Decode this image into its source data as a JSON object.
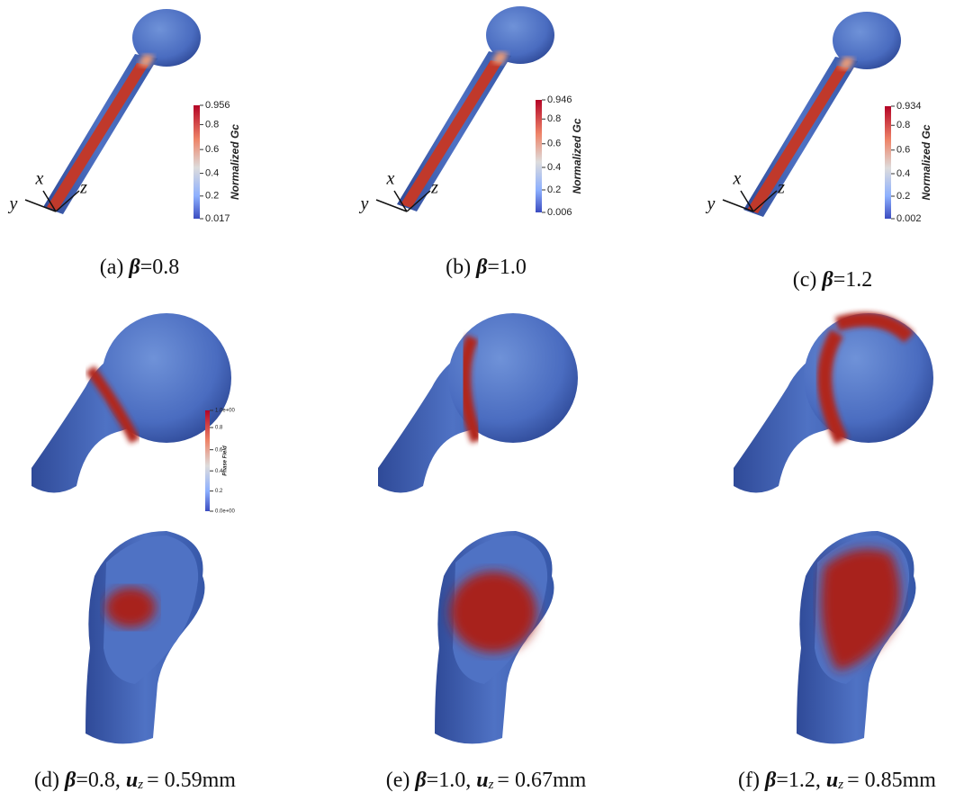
{
  "panels": [
    {
      "caption": {
        "label": "(a)",
        "beta": "β",
        "beta_value": "=0.8"
      },
      "colorbar": {
        "title": "Normalized Gc",
        "ticks": [
          "0.956",
          "0.8",
          "0.6",
          "0.4",
          "0.2",
          "0.017"
        ]
      },
      "axes": [
        "x",
        "y",
        "z"
      ]
    },
    {
      "caption": {
        "label": "(b)",
        "beta": "β",
        "beta_value": "=1.0"
      },
      "colorbar": {
        "title": "Normalized Gc",
        "ticks": [
          "0.946",
          "0.8",
          "0.6",
          "0.4",
          "0.2",
          "0.006"
        ]
      },
      "axes": [
        "x",
        "y",
        "z"
      ]
    },
    {
      "caption": {
        "label": "(c)",
        "beta": "β",
        "beta_value": "=1.2"
      },
      "colorbar": {
        "title": "Normalized Gc",
        "ticks": [
          "0.934",
          "0.8",
          "0.6",
          "0.4",
          "0.2",
          "0.002"
        ]
      },
      "axes": [
        "x",
        "y",
        "z"
      ]
    },
    {
      "caption": {
        "label": "(d)",
        "beta": "β",
        "beta_value": "=0.8,",
        "u": "u",
        "u_sub": "z",
        "u_value": "= 0.59mm"
      },
      "colorbar": {
        "title": "Phase Field",
        "ticks": [
          "1.0e+00",
          "0.8",
          "0.6",
          "0.4",
          "0.2",
          "0.0e+00"
        ]
      }
    },
    {
      "caption": {
        "label": "(e)",
        "beta": "β",
        "beta_value": "=1.0,",
        "u": "u",
        "u_sub": "z",
        "u_value": "= 0.67mm"
      }
    },
    {
      "caption": {
        "label": "(f)",
        "beta": "β",
        "beta_value": "=1.2,",
        "u": "u",
        "u_sub": "z",
        "u_value": "= 0.85mm"
      }
    }
  ]
}
